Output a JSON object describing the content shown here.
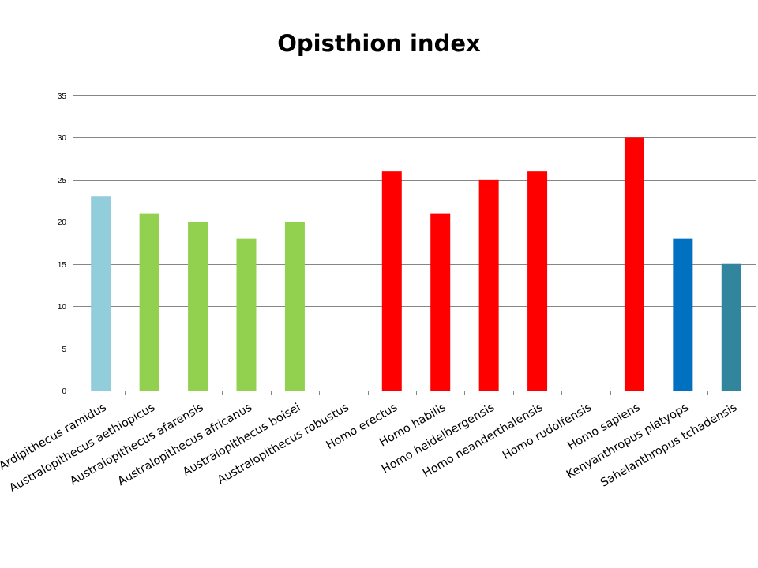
{
  "chart_data": {
    "type": "bar",
    "title": "Opisthion index",
    "xlabel": "",
    "ylabel": "",
    "ylim": [
      0,
      35
    ],
    "yticks": [
      0,
      5,
      10,
      15,
      20,
      25,
      30,
      35
    ],
    "grid": true,
    "legend": "none",
    "categories": [
      "Ardipithecus ramidus",
      "Australopithecus aethiopicus",
      "Australopithecus afarensis",
      "Australopithecus africanus",
      "Australopithecus boisei",
      "Australopithecus robustus",
      "Homo erectus",
      "Homo habilis",
      "Homo heidelbergensis",
      "Homo neanderthalensis",
      "Homo rudolfensis",
      "Homo sapiens",
      "Kenyanthropus platyops",
      "Sahelanthropus tchadensis"
    ],
    "values": [
      23,
      21,
      20,
      18,
      20,
      null,
      26,
      21,
      25,
      26,
      null,
      30,
      18,
      15
    ],
    "colors": [
      "#92cddc",
      "#92d050",
      "#92d050",
      "#92d050",
      "#92d050",
      "#92d050",
      "#ff0000",
      "#ff0000",
      "#ff0000",
      "#ff0000",
      "#ff0000",
      "#ff0000",
      "#0070c0",
      "#31859c"
    ],
    "gridline_color": "#868686"
  }
}
